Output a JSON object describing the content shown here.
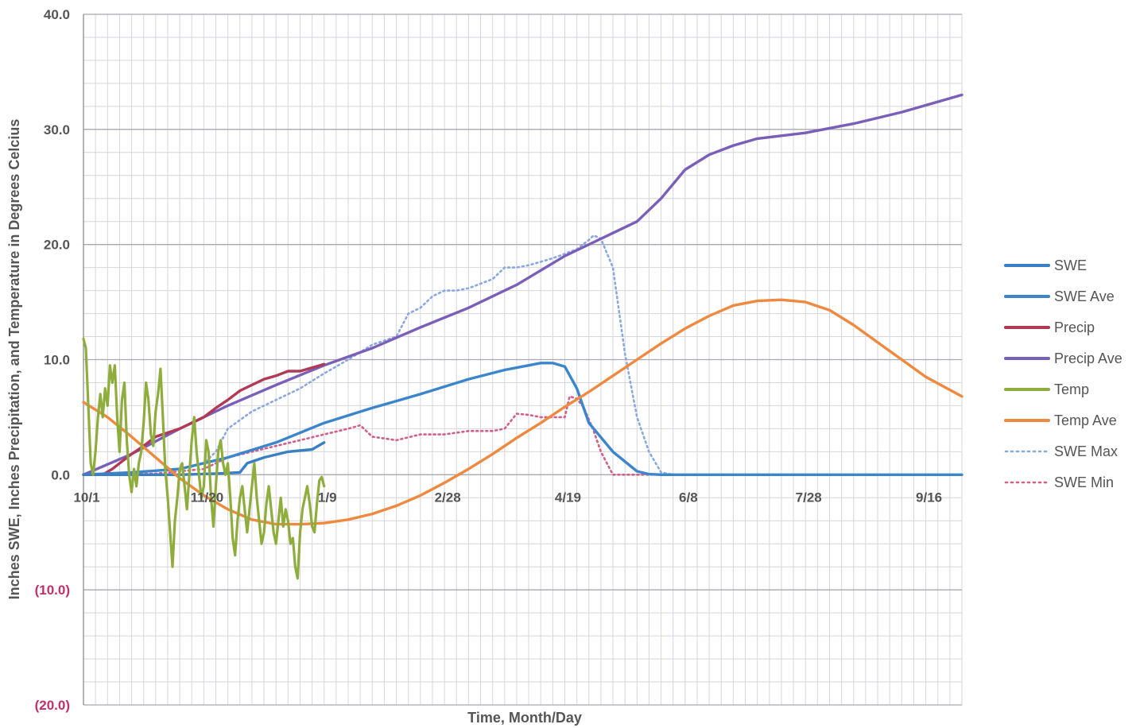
{
  "chart_data": {
    "type": "line",
    "xlabel": "Time, Month/Day",
    "ylabel": "Inches SWE, Inches Precipitation, and Temperature in Degrees Celcius",
    "xlim": [
      0,
      365
    ],
    "ylim": [
      -20,
      40
    ],
    "grid": true,
    "legend_position": "right",
    "x_ticks": [
      {
        "day": 0,
        "label": "10/1"
      },
      {
        "day": 50,
        "label": "11/20"
      },
      {
        "day": 100,
        "label": "1/9"
      },
      {
        "day": 150,
        "label": "2/28"
      },
      {
        "day": 200,
        "label": "4/19"
      },
      {
        "day": 250,
        "label": "6/8"
      },
      {
        "day": 300,
        "label": "7/28"
      },
      {
        "day": 350,
        "label": "9/16"
      }
    ],
    "y_ticks": [
      {
        "value": 40,
        "label": "40.0",
        "color": "#555555"
      },
      {
        "value": 30,
        "label": "30.0",
        "color": "#555555"
      },
      {
        "value": 20,
        "label": "20.0",
        "color": "#555555"
      },
      {
        "value": 10,
        "label": "10.0",
        "color": "#555555"
      },
      {
        "value": 0,
        "label": "0.0",
        "color": "#555555"
      },
      {
        "value": -10,
        "label": "(10.0)",
        "color": "#c0306a"
      },
      {
        "value": -20,
        "label": "(20.0)",
        "color": "#c0306a"
      }
    ],
    "series": [
      {
        "name": "SWE",
        "color": "#3a7fc4",
        "dash": "solid",
        "x": [
          0,
          20,
          40,
          55,
          65,
          68,
          75,
          85,
          95,
          100
        ],
        "y": [
          0,
          0,
          0,
          0.1,
          0.2,
          1.0,
          1.5,
          2.0,
          2.2,
          2.8
        ]
      },
      {
        "name": "SWE Ave",
        "color": "#3a85cc",
        "dash": "solid",
        "x": [
          0,
          20,
          40,
          60,
          80,
          100,
          120,
          140,
          160,
          175,
          185,
          190,
          195,
          200,
          205,
          210,
          220,
          230,
          235,
          240,
          245,
          250,
          365
        ],
        "y": [
          0,
          0.2,
          0.5,
          1.5,
          2.8,
          4.5,
          5.8,
          7.0,
          8.3,
          9.1,
          9.5,
          9.7,
          9.7,
          9.4,
          7.5,
          4.5,
          2.0,
          0.3,
          0.05,
          0,
          0,
          0,
          0
        ]
      },
      {
        "name": "Precip",
        "color": "#b03a55",
        "dash": "solid",
        "x": [
          0,
          8,
          12,
          15,
          20,
          25,
          30,
          40,
          50,
          55,
          60,
          65,
          70,
          75,
          80,
          85,
          90,
          95,
          100
        ],
        "y": [
          0,
          0,
          0.5,
          1.0,
          1.8,
          2.5,
          3.3,
          4.0,
          5.0,
          5.8,
          6.5,
          7.3,
          7.8,
          8.3,
          8.6,
          9.0,
          9.0,
          9.3,
          9.6
        ]
      },
      {
        "name": "Precip Ave",
        "color": "#7a5fb8",
        "dash": "solid",
        "x": [
          0,
          20,
          40,
          60,
          80,
          100,
          120,
          140,
          160,
          180,
          200,
          220,
          230,
          240,
          250,
          260,
          270,
          280,
          300,
          320,
          340,
          365
        ],
        "y": [
          0,
          1.8,
          4.0,
          6.0,
          7.8,
          9.5,
          11.0,
          12.8,
          14.5,
          16.5,
          19.0,
          21.0,
          22.0,
          24.0,
          26.5,
          27.8,
          28.6,
          29.2,
          29.7,
          30.5,
          31.5,
          33.0
        ]
      },
      {
        "name": "Temp",
        "color": "#8fad3c",
        "dash": "solid",
        "x": [
          0,
          1,
          2,
          3,
          4,
          5,
          6,
          7,
          8,
          9,
          10,
          11,
          12,
          13,
          14,
          15,
          16,
          17,
          18,
          19,
          20,
          21,
          22,
          23,
          24,
          25,
          26,
          27,
          28,
          29,
          30,
          31,
          32,
          33,
          34,
          35,
          36,
          37,
          38,
          39,
          40,
          41,
          42,
          43,
          44,
          45,
          46,
          47,
          48,
          49,
          50,
          51,
          52,
          53,
          54,
          55,
          56,
          57,
          58,
          59,
          60,
          61,
          62,
          63,
          64,
          65,
          66,
          67,
          68,
          69,
          70,
          71,
          72,
          73,
          74,
          75,
          76,
          77,
          78,
          79,
          80,
          81,
          82,
          83,
          84,
          85,
          86,
          87,
          88,
          89,
          90,
          91,
          92,
          93,
          94,
          95,
          96,
          97,
          98,
          99,
          100
        ],
        "y": [
          11.8,
          11.0,
          6.0,
          1.0,
          0.0,
          2.0,
          5.0,
          7.0,
          5.0,
          7.5,
          6.0,
          9.5,
          8.0,
          9.5,
          5.0,
          2.0,
          6.5,
          8.0,
          3.0,
          0.0,
          -1.5,
          0.5,
          -1.0,
          1.0,
          2.0,
          4.5,
          8.0,
          6.5,
          3.5,
          2.5,
          5.5,
          7.0,
          9.2,
          5.0,
          0.5,
          -2.0,
          -5.0,
          -8.0,
          -4.0,
          -2.0,
          0.5,
          1.0,
          -1.0,
          -3.0,
          0.0,
          3.0,
          5.0,
          2.0,
          0.0,
          -2.0,
          -1.0,
          3.0,
          2.0,
          -2.0,
          -4.5,
          -1.0,
          2.0,
          3.0,
          1.0,
          0.0,
          1.0,
          -2.0,
          -5.5,
          -7.0,
          -4.0,
          -2.0,
          -1.0,
          -3.0,
          -5.0,
          -3.0,
          -1.0,
          1.0,
          -2.0,
          -4.0,
          -6.0,
          -5.0,
          -2.5,
          -1.0,
          -3.0,
          -5.0,
          -6.0,
          -4.0,
          -2.0,
          -4.5,
          -3.0,
          -4.0,
          -6.0,
          -5.5,
          -8.0,
          -9.0,
          -5.0,
          -3.0,
          -2.0,
          -1.0,
          -2.5,
          -4.5,
          -5.0,
          -2.5,
          -0.5,
          -0.2,
          -1.0
        ]
      },
      {
        "name": "Temp Ave",
        "color": "#ee8a40",
        "dash": "solid",
        "x": [
          0,
          10,
          20,
          30,
          40,
          50,
          60,
          70,
          80,
          90,
          100,
          110,
          120,
          130,
          140,
          150,
          160,
          170,
          180,
          190,
          200,
          210,
          220,
          230,
          240,
          250,
          260,
          270,
          280,
          290,
          300,
          310,
          320,
          330,
          340,
          350,
          365
        ],
        "y": [
          6.3,
          5.0,
          3.3,
          1.5,
          -0.3,
          -1.8,
          -3.0,
          -3.9,
          -4.3,
          -4.3,
          -4.2,
          -3.9,
          -3.4,
          -2.7,
          -1.8,
          -0.7,
          0.5,
          1.8,
          3.2,
          4.5,
          5.9,
          7.2,
          8.6,
          10.0,
          11.4,
          12.7,
          13.8,
          14.7,
          15.1,
          15.2,
          15.0,
          14.3,
          13.0,
          11.5,
          10.0,
          8.5,
          6.8
        ]
      },
      {
        "name": "SWE Max",
        "color": "#8aa8e0",
        "dash": "dotted",
        "x": [
          0,
          20,
          40,
          50,
          55,
          60,
          70,
          80,
          90,
          100,
          110,
          120,
          130,
          135,
          140,
          145,
          150,
          155,
          160,
          170,
          175,
          180,
          185,
          190,
          195,
          200,
          205,
          210,
          212,
          215,
          220,
          222,
          225,
          230,
          235,
          240,
          245,
          250,
          365
        ],
        "y": [
          0,
          0.2,
          0.5,
          1.0,
          2.0,
          4.0,
          5.5,
          6.5,
          7.5,
          8.8,
          10.0,
          11.3,
          12.0,
          14.0,
          14.5,
          15.5,
          16.0,
          16.0,
          16.2,
          17.0,
          18.0,
          18.0,
          18.2,
          18.5,
          18.8,
          19.2,
          19.6,
          20.4,
          20.8,
          20.5,
          18.0,
          15.0,
          10.5,
          5.0,
          2.0,
          0.2,
          0,
          0,
          0
        ]
      },
      {
        "name": "SWE Min",
        "color": "#d0608a",
        "dash": "dotted",
        "x": [
          0,
          30,
          50,
          60,
          70,
          80,
          90,
          100,
          110,
          115,
          120,
          130,
          140,
          150,
          160,
          170,
          175,
          180,
          185,
          190,
          195,
          200,
          202,
          205,
          208,
          212,
          215,
          220,
          365
        ],
        "y": [
          0,
          0.1,
          0.5,
          1.5,
          2.0,
          2.5,
          3.0,
          3.5,
          4.0,
          4.3,
          3.3,
          3.0,
          3.5,
          3.5,
          3.8,
          3.8,
          4.0,
          5.3,
          5.2,
          5.0,
          5.0,
          5.0,
          6.8,
          6.6,
          5.8,
          3.8,
          2.0,
          0,
          0
        ]
      }
    ]
  }
}
